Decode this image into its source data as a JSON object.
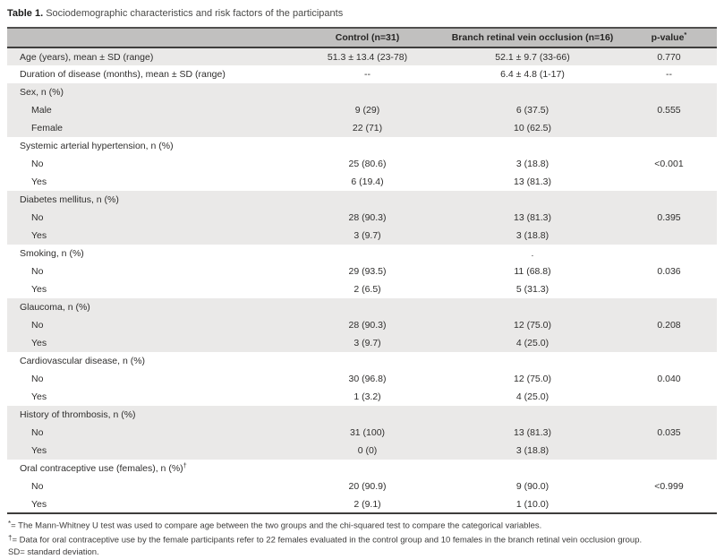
{
  "title": {
    "label": "Table 1.",
    "text": "Sociodemographic characteristics and risk factors of the participants"
  },
  "table": {
    "columns": [
      {
        "label": ""
      },
      {
        "label": "Control (n=31)"
      },
      {
        "label": "Branch retinal vein occlusion (n=16)"
      },
      {
        "label": "p-value",
        "sup": "*"
      }
    ],
    "rows": [
      {
        "label": "Age (years), mean ± SD (range)",
        "indent": false,
        "control": "51.3 ± 13.4 (23-78)",
        "brvo": "52.1 ± 9.7 (33-66)",
        "p": "0.770",
        "shade": "gray"
      },
      {
        "label": "Duration of disease (months), mean ± SD (range)",
        "indent": false,
        "control": "--",
        "brvo": "6.4 ± 4.8 (1-17)",
        "p": "--",
        "shade": "white"
      },
      {
        "label": "Sex, n (%)",
        "indent": false,
        "control": "",
        "brvo": "",
        "p": "",
        "shade": "gray"
      },
      {
        "label": "Male",
        "indent": true,
        "control": "9 (29)",
        "brvo": "6 (37.5)",
        "p": "0.555",
        "shade": "gray"
      },
      {
        "label": "Female",
        "indent": true,
        "control": "22 (71)",
        "brvo": "10 (62.5)",
        "p": "",
        "shade": "gray"
      },
      {
        "label": "Systemic arterial hypertension, n (%)",
        "indent": false,
        "control": "",
        "brvo": "",
        "p": "",
        "shade": "white"
      },
      {
        "label": "No",
        "indent": true,
        "control": "25 (80.6)",
        "brvo": "3 (18.8)",
        "p": "<0.001",
        "shade": "white"
      },
      {
        "label": "Yes",
        "indent": true,
        "control": "6 (19.4)",
        "brvo": "13 (81.3)",
        "p": "",
        "shade": "white"
      },
      {
        "label": "Diabetes mellitus, n (%)",
        "indent": false,
        "control": "",
        "brvo": "",
        "p": "",
        "shade": "gray"
      },
      {
        "label": "No",
        "indent": true,
        "control": "28 (90.3)",
        "brvo": "13 (81.3)",
        "p": "0.395",
        "shade": "gray"
      },
      {
        "label": "Yes",
        "indent": true,
        "control": "3 (9.7)",
        "brvo": "3 (18.8)",
        "p": "",
        "shade": "gray"
      },
      {
        "label": "Smoking, n (%)",
        "indent": false,
        "control": "",
        "brvo": ".",
        "p": "",
        "shade": "white"
      },
      {
        "label": "No",
        "indent": true,
        "control": "29 (93.5)",
        "brvo": "11 (68.8)",
        "p": "0.036",
        "shade": "white"
      },
      {
        "label": "Yes",
        "indent": true,
        "control": "2 (6.5)",
        "brvo": "5 (31.3)",
        "p": "",
        "shade": "white"
      },
      {
        "label": "Glaucoma, n (%)",
        "indent": false,
        "control": "",
        "brvo": "",
        "p": "",
        "shade": "gray"
      },
      {
        "label": "No",
        "indent": true,
        "control": "28 (90.3)",
        "brvo": "12 (75.0)",
        "p": "0.208",
        "shade": "gray"
      },
      {
        "label": "Yes",
        "indent": true,
        "control": "3 (9.7)",
        "brvo": "4 (25.0)",
        "p": "",
        "shade": "gray"
      },
      {
        "label": "Cardiovascular disease, n (%)",
        "indent": false,
        "control": "",
        "brvo": "",
        "p": "",
        "shade": "white"
      },
      {
        "label": "No",
        "indent": true,
        "control": "30 (96.8)",
        "brvo": "12 (75.0)",
        "p": "0.040",
        "shade": "white"
      },
      {
        "label": "Yes",
        "indent": true,
        "control": "1 (3.2)",
        "brvo": "4 (25.0)",
        "p": "",
        "shade": "white"
      },
      {
        "label": "History of thrombosis, n (%)",
        "indent": false,
        "control": "",
        "brvo": "",
        "p": "",
        "shade": "gray"
      },
      {
        "label": "No",
        "indent": true,
        "control": "31 (100)",
        "brvo": "13 (81.3)",
        "p": "0.035",
        "shade": "gray"
      },
      {
        "label": "Yes",
        "indent": true,
        "control": "0 (0)",
        "brvo": "3 (18.8)",
        "p": "",
        "shade": "gray"
      },
      {
        "label": "Oral contraceptive use (females), n (%)",
        "sup": "†",
        "indent": false,
        "control": "",
        "brvo": "",
        "p": "",
        "shade": "white"
      },
      {
        "label": "No",
        "indent": true,
        "control": "20 (90.9)",
        "brvo": "9 (90.0)",
        "p": "<0.999",
        "shade": "white"
      },
      {
        "label": "Yes",
        "indent": true,
        "control": "2 (9.1)",
        "brvo": "1 (10.0)",
        "p": "",
        "shade": "white"
      }
    ]
  },
  "footnotes": [
    {
      "marker": "*",
      "eq": "=",
      "text": "The Mann-Whitney U test was used to compare age between the two groups and the chi-squared test to compare the categorical variables."
    },
    {
      "marker": "†",
      "eq": "=",
      "text": "Data for oral contraceptive use by the female participants refer to 22 females evaluated in the control group and 10 females in the branch retinal vein occlusion group."
    },
    {
      "marker": "SD",
      "eq": "=",
      "text": "standard deviation."
    }
  ],
  "colors": {
    "header_bg": "#c1c0bf",
    "row_gray": "#eae9e8",
    "row_white": "#ffffff",
    "border_dark": "#3e3d3c",
    "text": "#2f2e2d"
  }
}
